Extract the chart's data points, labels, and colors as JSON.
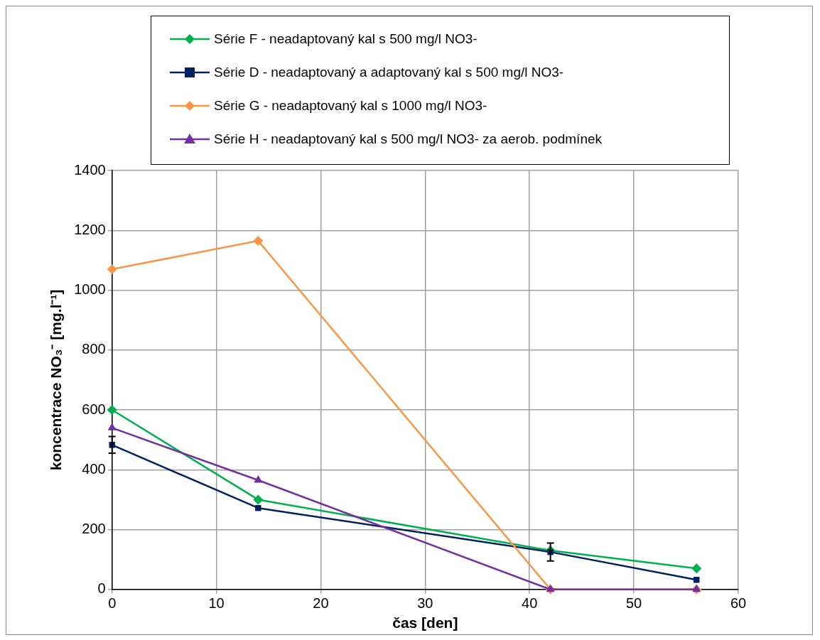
{
  "chart_data": {
    "type": "line",
    "xlabel": "čas [den]",
    "ylabel": "koncentrace NO₃⁻ [mg.l⁻¹]",
    "xlim": [
      0,
      60
    ],
    "xticks": [
      0,
      10,
      20,
      30,
      40,
      50,
      60
    ],
    "ylim": [
      0,
      1400
    ],
    "yticks": [
      0,
      200,
      400,
      600,
      800,
      1000,
      1200,
      1400
    ],
    "grid": true,
    "legend": "top",
    "series": [
      {
        "name": "Série F - neadaptovaný kal s 500 mg/l NO3-",
        "color": "#00b050",
        "marker": "diamond",
        "x": [
          0,
          14,
          42,
          56
        ],
        "values": [
          600,
          300,
          130,
          70
        ]
      },
      {
        "name": "Série D - neadaptovaný a adaptovaný kal s 500 mg/l NO3-",
        "color": "#002060",
        "marker": "square",
        "x": [
          0,
          14,
          42,
          56
        ],
        "values": [
          483,
          272,
          125,
          32
        ],
        "errors": [
          28,
          null,
          30,
          null
        ]
      },
      {
        "name": "Série G - neadaptovaný kal s 1000 mg/l NO3-",
        "color": "#f79646",
        "marker": "diamond",
        "x": [
          0,
          14,
          42,
          56
        ],
        "values": [
          1070,
          1165,
          0,
          0
        ]
      },
      {
        "name": "Série H - neadaptovaný kal s 500 mg/l NO3- za aerob. podmínek",
        "color": "#7030a0",
        "marker": "triangle",
        "x": [
          0,
          14,
          42,
          56
        ],
        "values": [
          540,
          365,
          0,
          0
        ]
      }
    ]
  }
}
